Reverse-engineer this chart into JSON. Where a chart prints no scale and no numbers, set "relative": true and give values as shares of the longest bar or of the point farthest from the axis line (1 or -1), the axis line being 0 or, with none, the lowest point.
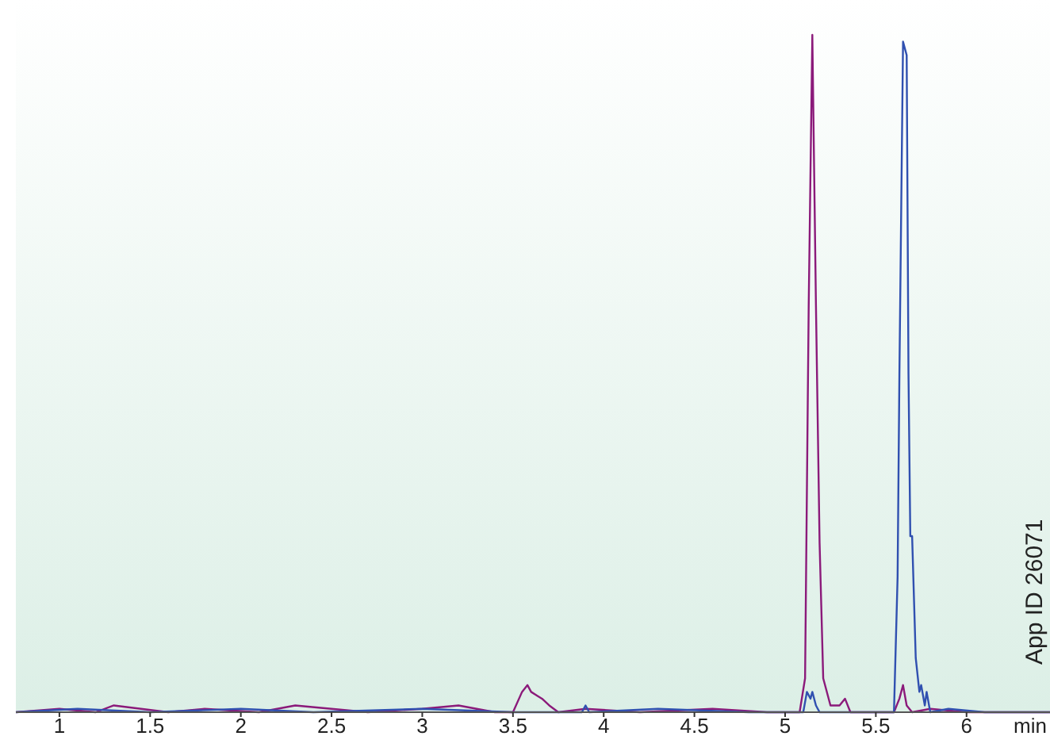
{
  "chart_data": {
    "type": "line",
    "relative": true,
    "xlabel": "min",
    "annotations": [
      "App ID 26071"
    ],
    "xlim": [
      0.76,
      6.46
    ],
    "xticks": [
      1,
      1.5,
      2,
      2.5,
      3,
      3.5,
      4,
      4.5,
      5,
      5.5,
      6
    ],
    "grid": false,
    "line_style": "solid",
    "series": [
      {
        "color": "#8b1a7a",
        "x": [
          0.76,
          1.0,
          1.2,
          1.3,
          1.6,
          1.8,
          2.1,
          2.3,
          2.7,
          3.0,
          3.2,
          3.4,
          3.5,
          3.55,
          3.58,
          3.6,
          3.63,
          3.66,
          3.7,
          3.75,
          3.9,
          4.2,
          4.6,
          4.9,
          5.08,
          5.11,
          5.13,
          5.15,
          5.17,
          5.19,
          5.21,
          5.25,
          5.3,
          5.33,
          5.36,
          5.45,
          5.6,
          5.63,
          5.65,
          5.67,
          5.7,
          5.8,
          6.0,
          6.46
        ],
        "values": [
          0,
          0.005,
          0,
          0.01,
          0,
          0.005,
          0,
          0.01,
          0,
          0.005,
          0.01,
          0,
          0,
          0.03,
          0.04,
          0.03,
          0.025,
          0.02,
          0.01,
          0,
          0.005,
          0,
          0.005,
          0,
          0,
          0.05,
          0.6,
          1,
          0.6,
          0.25,
          0.05,
          0.01,
          0.01,
          0.02,
          0,
          0,
          0,
          0.02,
          0.04,
          0.01,
          0,
          0.005,
          0,
          0
        ]
      },
      {
        "color": "#3050b0",
        "x": [
          0.76,
          1.1,
          1.5,
          2.0,
          2.4,
          3.0,
          3.5,
          3.88,
          3.9,
          3.92,
          4.3,
          4.8,
          5.1,
          5.12,
          5.14,
          5.15,
          5.17,
          5.19,
          5.6,
          5.62,
          5.63,
          5.65,
          5.67,
          5.68,
          5.69,
          5.7,
          5.72,
          5.74,
          5.75,
          5.77,
          5.78,
          5.8,
          5.9,
          6.1,
          6.46
        ],
        "values": [
          0,
          0.005,
          0,
          0.005,
          0,
          0.005,
          0,
          0,
          0.01,
          0,
          0.005,
          0,
          0,
          0.03,
          0.02,
          0.03,
          0.01,
          0,
          0,
          0.2,
          0.5,
          0.99,
          0.97,
          0.5,
          0.26,
          0.26,
          0.08,
          0.03,
          0.04,
          0.01,
          0.03,
          0,
          0.005,
          0,
          0
        ]
      }
    ]
  }
}
